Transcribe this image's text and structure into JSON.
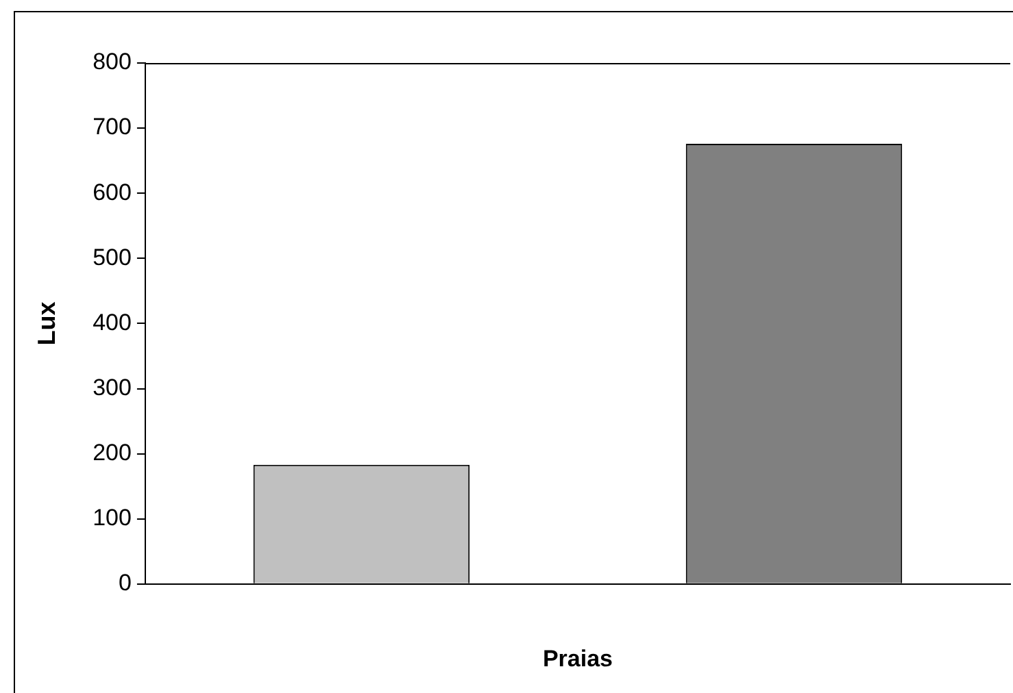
{
  "chart_data": {
    "type": "bar",
    "xlabel": "Praias",
    "ylabel": "Lux",
    "categories": [
      null,
      null
    ],
    "values": [
      183,
      676
    ],
    "colors": [
      "#c0c0c0",
      "#808080"
    ],
    "ylim": [
      0,
      800
    ],
    "yticks": [
      0,
      100,
      200,
      300,
      400,
      500,
      600,
      700,
      800
    ],
    "grid": false,
    "legend": false
  }
}
